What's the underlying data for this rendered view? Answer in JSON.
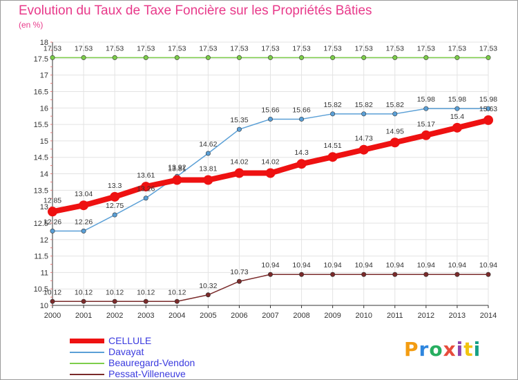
{
  "header": {
    "title": "Evolution du Taux de Taxe Foncière sur les Propriétés Bâties",
    "subtitle": "(en %)"
  },
  "brand": {
    "letters": [
      "P",
      "r",
      "o",
      "x",
      "i",
      "t",
      "i"
    ],
    "colors": [
      "#f39c12",
      "#2e86de",
      "#27ae60",
      "#e74c3c",
      "#8e44ad",
      "#f1c40f",
      "#16a085"
    ]
  },
  "chart_data": {
    "type": "line",
    "title": "Evolution du Taux de Taxe Foncière sur les Propriétés Bâties",
    "ylabel": "(en %)",
    "xlabel": "",
    "ylim": [
      10,
      18
    ],
    "y_ticks": [
      "10",
      "10.5",
      "11",
      "11.5",
      "12",
      "12.5",
      "13",
      "13.5",
      "14",
      "14.5",
      "15",
      "15.5",
      "16",
      "16.5",
      "17",
      "17.5",
      "18"
    ],
    "grid": true,
    "legend_position": "bottom-left",
    "x": [
      "2000",
      "2001",
      "2002",
      "2003",
      "2004",
      "2005",
      "2006",
      "2007",
      "2008",
      "2009",
      "2010",
      "2011",
      "2012",
      "2013",
      "2014"
    ],
    "series": [
      {
        "name": "CELLULE",
        "color": "#ee1111",
        "values": [
          12.85,
          13.04,
          13.3,
          13.61,
          13.81,
          13.81,
          14.02,
          14.02,
          14.3,
          14.51,
          14.73,
          14.95,
          15.17,
          15.4,
          15.63
        ],
        "labels": [
          "12.85",
          "13.04",
          "13.3",
          "13.61",
          "13.81",
          "13.81",
          "14.02",
          "14.02",
          "14.3",
          "14.51",
          "14.73",
          "14.95",
          "15.17",
          "15.4",
          "15.63"
        ]
      },
      {
        "name": "Davayat",
        "color": "#5a9fd6",
        "values": [
          12.26,
          12.26,
          12.75,
          13.26,
          13.92,
          14.62,
          15.35,
          15.66,
          15.66,
          15.82,
          15.82,
          15.82,
          15.98,
          15.98,
          15.98
        ],
        "labels": [
          "12.26",
          "12.26",
          "12.75",
          "13.26",
          "13.92",
          "14.62",
          "15.35",
          "15.66",
          "15.66",
          "15.82",
          "15.82",
          "15.82",
          "15.98",
          "15.98",
          "15.98"
        ]
      },
      {
        "name": "Beauregard-Vendon",
        "color": "#7dce4a",
        "values": [
          17.53,
          17.53,
          17.53,
          17.53,
          17.53,
          17.53,
          17.53,
          17.53,
          17.53,
          17.53,
          17.53,
          17.53,
          17.53,
          17.53,
          17.53
        ],
        "labels": [
          "17.53",
          "17.53",
          "17.53",
          "17.53",
          "17.53",
          "17.53",
          "17.53",
          "17.53",
          "17.53",
          "17.53",
          "17.53",
          "17.53",
          "17.53",
          "17.53",
          "17.53"
        ]
      },
      {
        "name": "Pessat-Villeneuve",
        "color": "#7a2a2a",
        "values": [
          10.12,
          10.12,
          10.12,
          10.12,
          10.12,
          10.32,
          10.73,
          10.94,
          10.94,
          10.94,
          10.94,
          10.94,
          10.94,
          10.94,
          10.94
        ],
        "labels": [
          "10.12",
          "10.12",
          "10.12",
          "10.12",
          "10.12",
          "10.32",
          "10.73",
          "10.94",
          "10.94",
          "10.94",
          "10.94",
          "10.94",
          "10.94",
          "10.94",
          "10.94"
        ]
      }
    ]
  }
}
